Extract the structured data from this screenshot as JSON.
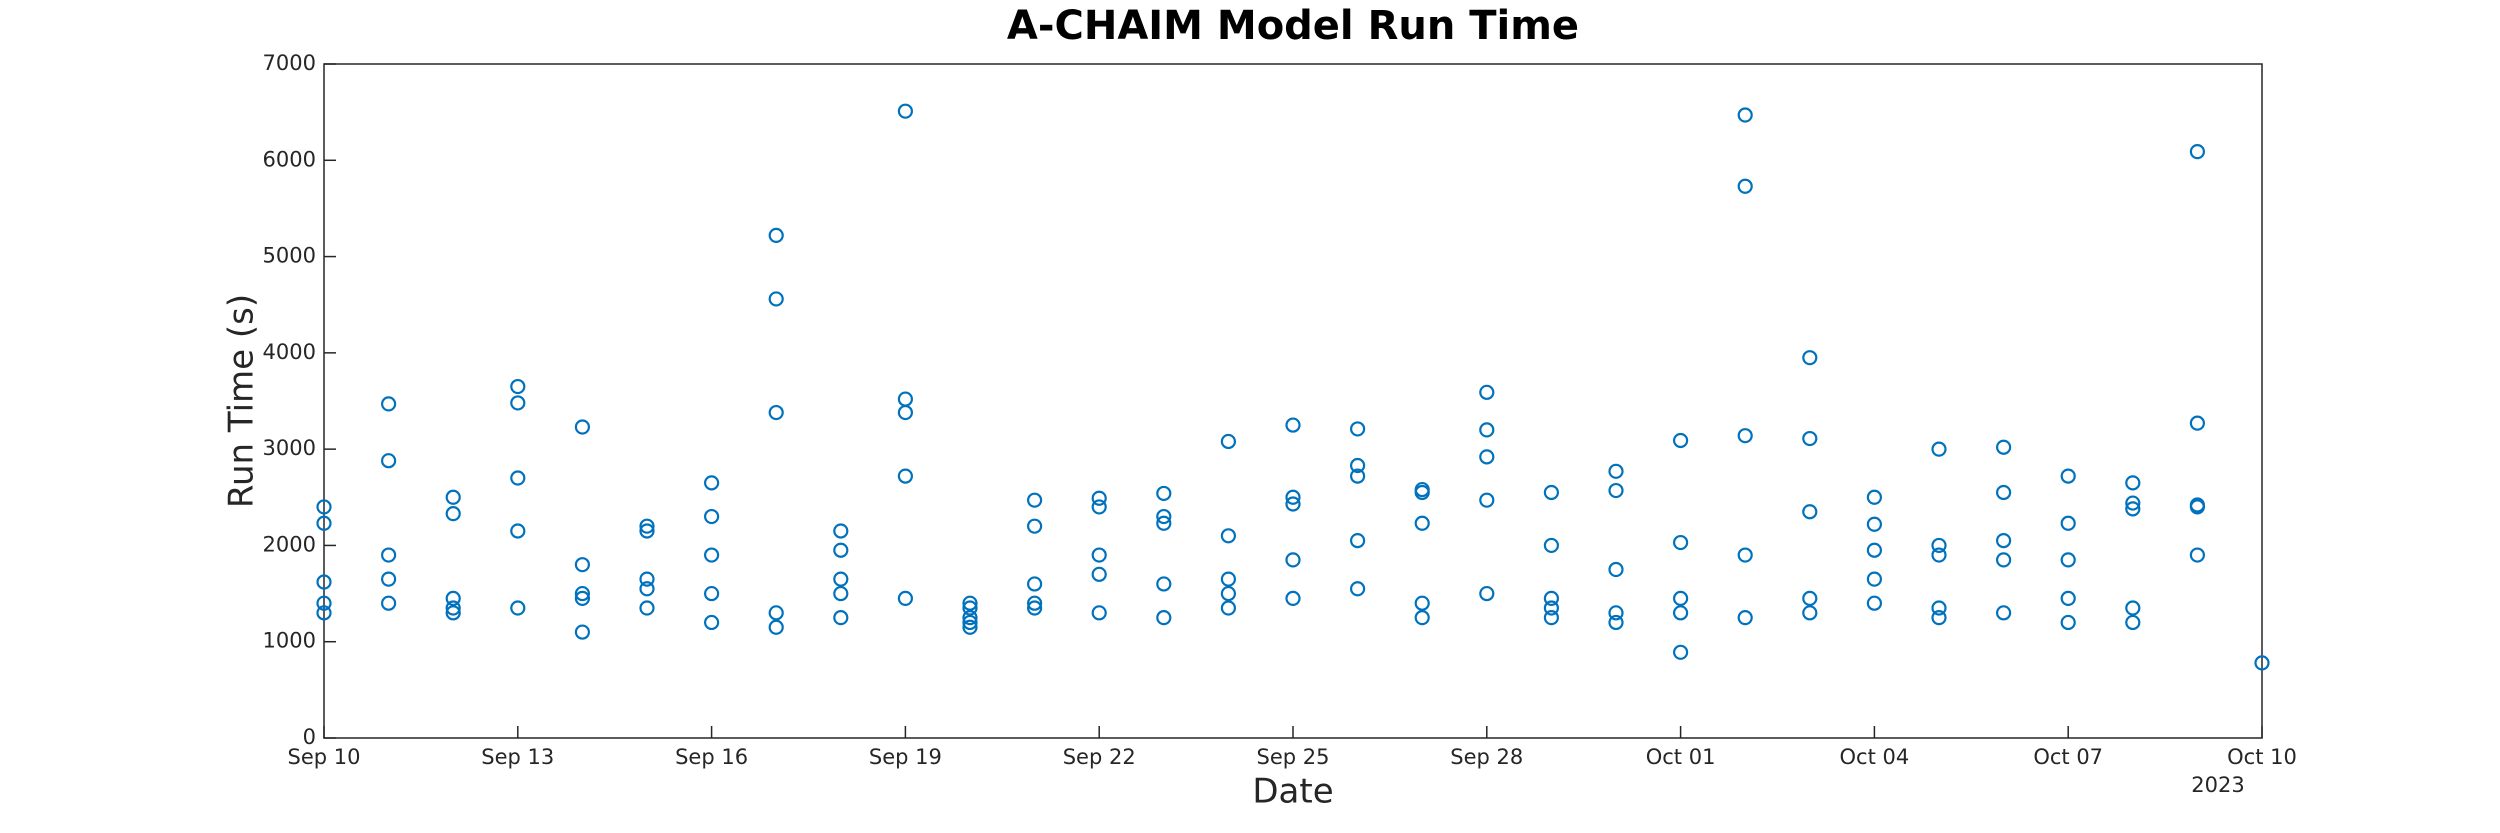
{
  "chart_data": {
    "type": "scatter",
    "title": "A-CHAIM Model Run Time",
    "x_label": "Date",
    "y_label": "Run Time (s)",
    "x_secondary_label": "2023",
    "xlim": [
      "2023-09-10",
      "2023-10-10"
    ],
    "xticks": [
      {
        "value": "2023-09-10",
        "label": "Sep 10"
      },
      {
        "value": "2023-09-13",
        "label": "Sep 13"
      },
      {
        "value": "2023-09-16",
        "label": "Sep 16"
      },
      {
        "value": "2023-09-19",
        "label": "Sep 19"
      },
      {
        "value": "2023-09-22",
        "label": "Sep 22"
      },
      {
        "value": "2023-09-25",
        "label": "Sep 25"
      },
      {
        "value": "2023-09-28",
        "label": "Sep 28"
      },
      {
        "value": "2023-10-01",
        "label": "Oct 01"
      },
      {
        "value": "2023-10-04",
        "label": "Oct 04"
      },
      {
        "value": "2023-10-07",
        "label": "Oct 07"
      },
      {
        "value": "2023-10-10",
        "label": "Oct 10"
      }
    ],
    "ylim": [
      0,
      7000
    ],
    "yticks": [
      0,
      1000,
      2000,
      3000,
      4000,
      5000,
      6000,
      7000
    ],
    "color": "#0072bd",
    "x": [
      "2023-09-10",
      "2023-09-10",
      "2023-09-10",
      "2023-09-10",
      "2023-09-10",
      "2023-09-11",
      "2023-09-11",
      "2023-09-11",
      "2023-09-11",
      "2023-09-11",
      "2023-09-12",
      "2023-09-12",
      "2023-09-12",
      "2023-09-12",
      "2023-09-12",
      "2023-09-13",
      "2023-09-13",
      "2023-09-13",
      "2023-09-13",
      "2023-09-13",
      "2023-09-14",
      "2023-09-14",
      "2023-09-14",
      "2023-09-14",
      "2023-09-14",
      "2023-09-15",
      "2023-09-15",
      "2023-09-15",
      "2023-09-15",
      "2023-09-15",
      "2023-09-16",
      "2023-09-16",
      "2023-09-16",
      "2023-09-16",
      "2023-09-16",
      "2023-09-17",
      "2023-09-17",
      "2023-09-17",
      "2023-09-17",
      "2023-09-17",
      "2023-09-18",
      "2023-09-18",
      "2023-09-18",
      "2023-09-18",
      "2023-09-18",
      "2023-09-19",
      "2023-09-19",
      "2023-09-19",
      "2023-09-19",
      "2023-09-19",
      "2023-09-20",
      "2023-09-20",
      "2023-09-20",
      "2023-09-20",
      "2023-09-20",
      "2023-09-21",
      "2023-09-21",
      "2023-09-21",
      "2023-09-21",
      "2023-09-21",
      "2023-09-22",
      "2023-09-22",
      "2023-09-22",
      "2023-09-22",
      "2023-09-22",
      "2023-09-23",
      "2023-09-23",
      "2023-09-23",
      "2023-09-23",
      "2023-09-23",
      "2023-09-24",
      "2023-09-24",
      "2023-09-24",
      "2023-09-24",
      "2023-09-24",
      "2023-09-25",
      "2023-09-25",
      "2023-09-25",
      "2023-09-25",
      "2023-09-25",
      "2023-09-26",
      "2023-09-26",
      "2023-09-26",
      "2023-09-26",
      "2023-09-26",
      "2023-09-27",
      "2023-09-27",
      "2023-09-27",
      "2023-09-27",
      "2023-09-27",
      "2023-09-28",
      "2023-09-28",
      "2023-09-28",
      "2023-09-28",
      "2023-09-28",
      "2023-09-29",
      "2023-09-29",
      "2023-09-29",
      "2023-09-29",
      "2023-09-29",
      "2023-09-30",
      "2023-09-30",
      "2023-09-30",
      "2023-09-30",
      "2023-09-30",
      "2023-10-01",
      "2023-10-01",
      "2023-10-01",
      "2023-10-01",
      "2023-10-01",
      "2023-10-02",
      "2023-10-02",
      "2023-10-02",
      "2023-10-02",
      "2023-10-02",
      "2023-10-03",
      "2023-10-03",
      "2023-10-03",
      "2023-10-03",
      "2023-10-03",
      "2023-10-04",
      "2023-10-04",
      "2023-10-04",
      "2023-10-04",
      "2023-10-04",
      "2023-10-05",
      "2023-10-05",
      "2023-10-05",
      "2023-10-05",
      "2023-10-05",
      "2023-10-06",
      "2023-10-06",
      "2023-10-06",
      "2023-10-06",
      "2023-10-06",
      "2023-10-07",
      "2023-10-07",
      "2023-10-07",
      "2023-10-07",
      "2023-10-07",
      "2023-10-08",
      "2023-10-08",
      "2023-10-08",
      "2023-10-08",
      "2023-10-08",
      "2023-10-09",
      "2023-10-09",
      "2023-10-09",
      "2023-10-09",
      "2023-10-09",
      "2023-10-10"
    ],
    "values": [
      2400,
      2230,
      1400,
      1620,
      1300,
      1900,
      1650,
      2880,
      3470,
      1400,
      2330,
      1350,
      1450,
      2500,
      1300,
      3650,
      3480,
      2700,
      1350,
      2150,
      1800,
      3230,
      1450,
      1500,
      1100,
      1550,
      2150,
      1350,
      2200,
      1650,
      2300,
      1900,
      2650,
      1200,
      1500,
      1150,
      5220,
      4560,
      3380,
      1300,
      2150,
      1500,
      1950,
      1250,
      1650,
      6510,
      3380,
      2720,
      3520,
      1450,
      1350,
      1200,
      1400,
      1250,
      1150,
      2200,
      1600,
      1400,
      2470,
      1350,
      2400,
      1900,
      1700,
      1300,
      2490,
      2540,
      2230,
      2300,
      1250,
      1600,
      3080,
      2100,
      1500,
      1350,
      1650,
      2500,
      1450,
      3250,
      1850,
      2430,
      2720,
      2830,
      3210,
      1550,
      2050,
      1250,
      2550,
      2230,
      2580,
      1400,
      2920,
      3590,
      2470,
      3200,
      1500,
      2550,
      1250,
      1350,
      1450,
      2000,
      1200,
      1300,
      2570,
      2770,
      1750,
      890,
      3090,
      1450,
      2030,
      1300,
      3140,
      6470,
      1900,
      1250,
      5730,
      3950,
      3110,
      2350,
      1450,
      1300,
      2500,
      1400,
      1950,
      2220,
      1650,
      3000,
      1250,
      1900,
      2000,
      1350,
      2550,
      1850,
      2050,
      3020,
      1300,
      2720,
      2230,
      1450,
      1200,
      1850,
      2440,
      2650,
      1350,
      2380,
      1200,
      3270,
      6090,
      2400,
      1900,
      2420,
      780
    ]
  }
}
